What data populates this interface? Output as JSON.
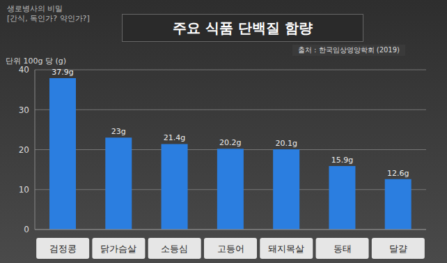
{
  "chart_data": {
    "type": "bar",
    "title": "주요 식품 단백질 함량",
    "subtitle": "출처 : 한국임상영양학회 (2019)",
    "y_label": "단위 100g 당 (g)",
    "annotations": [
      "생로병사의 비밀",
      "[간식, 독인가? 약인가?]"
    ],
    "categories": [
      "검정콩",
      "닭가슴살",
      "소등심",
      "고등어",
      "돼지목살",
      "동태",
      "달걀"
    ],
    "values": [
      37.9,
      23,
      21.4,
      20.2,
      20.1,
      15.9,
      12.6
    ],
    "value_labels": [
      "37.9g",
      "23g",
      "21.4g",
      "20.2g",
      "20.1g",
      "15.9g",
      "12.6g"
    ],
    "color": "#2b7ee0",
    "ylim": [
      0,
      40
    ],
    "yticks": [
      0,
      10,
      20,
      30,
      40
    ],
    "grid": true,
    "data_labels": true
  }
}
